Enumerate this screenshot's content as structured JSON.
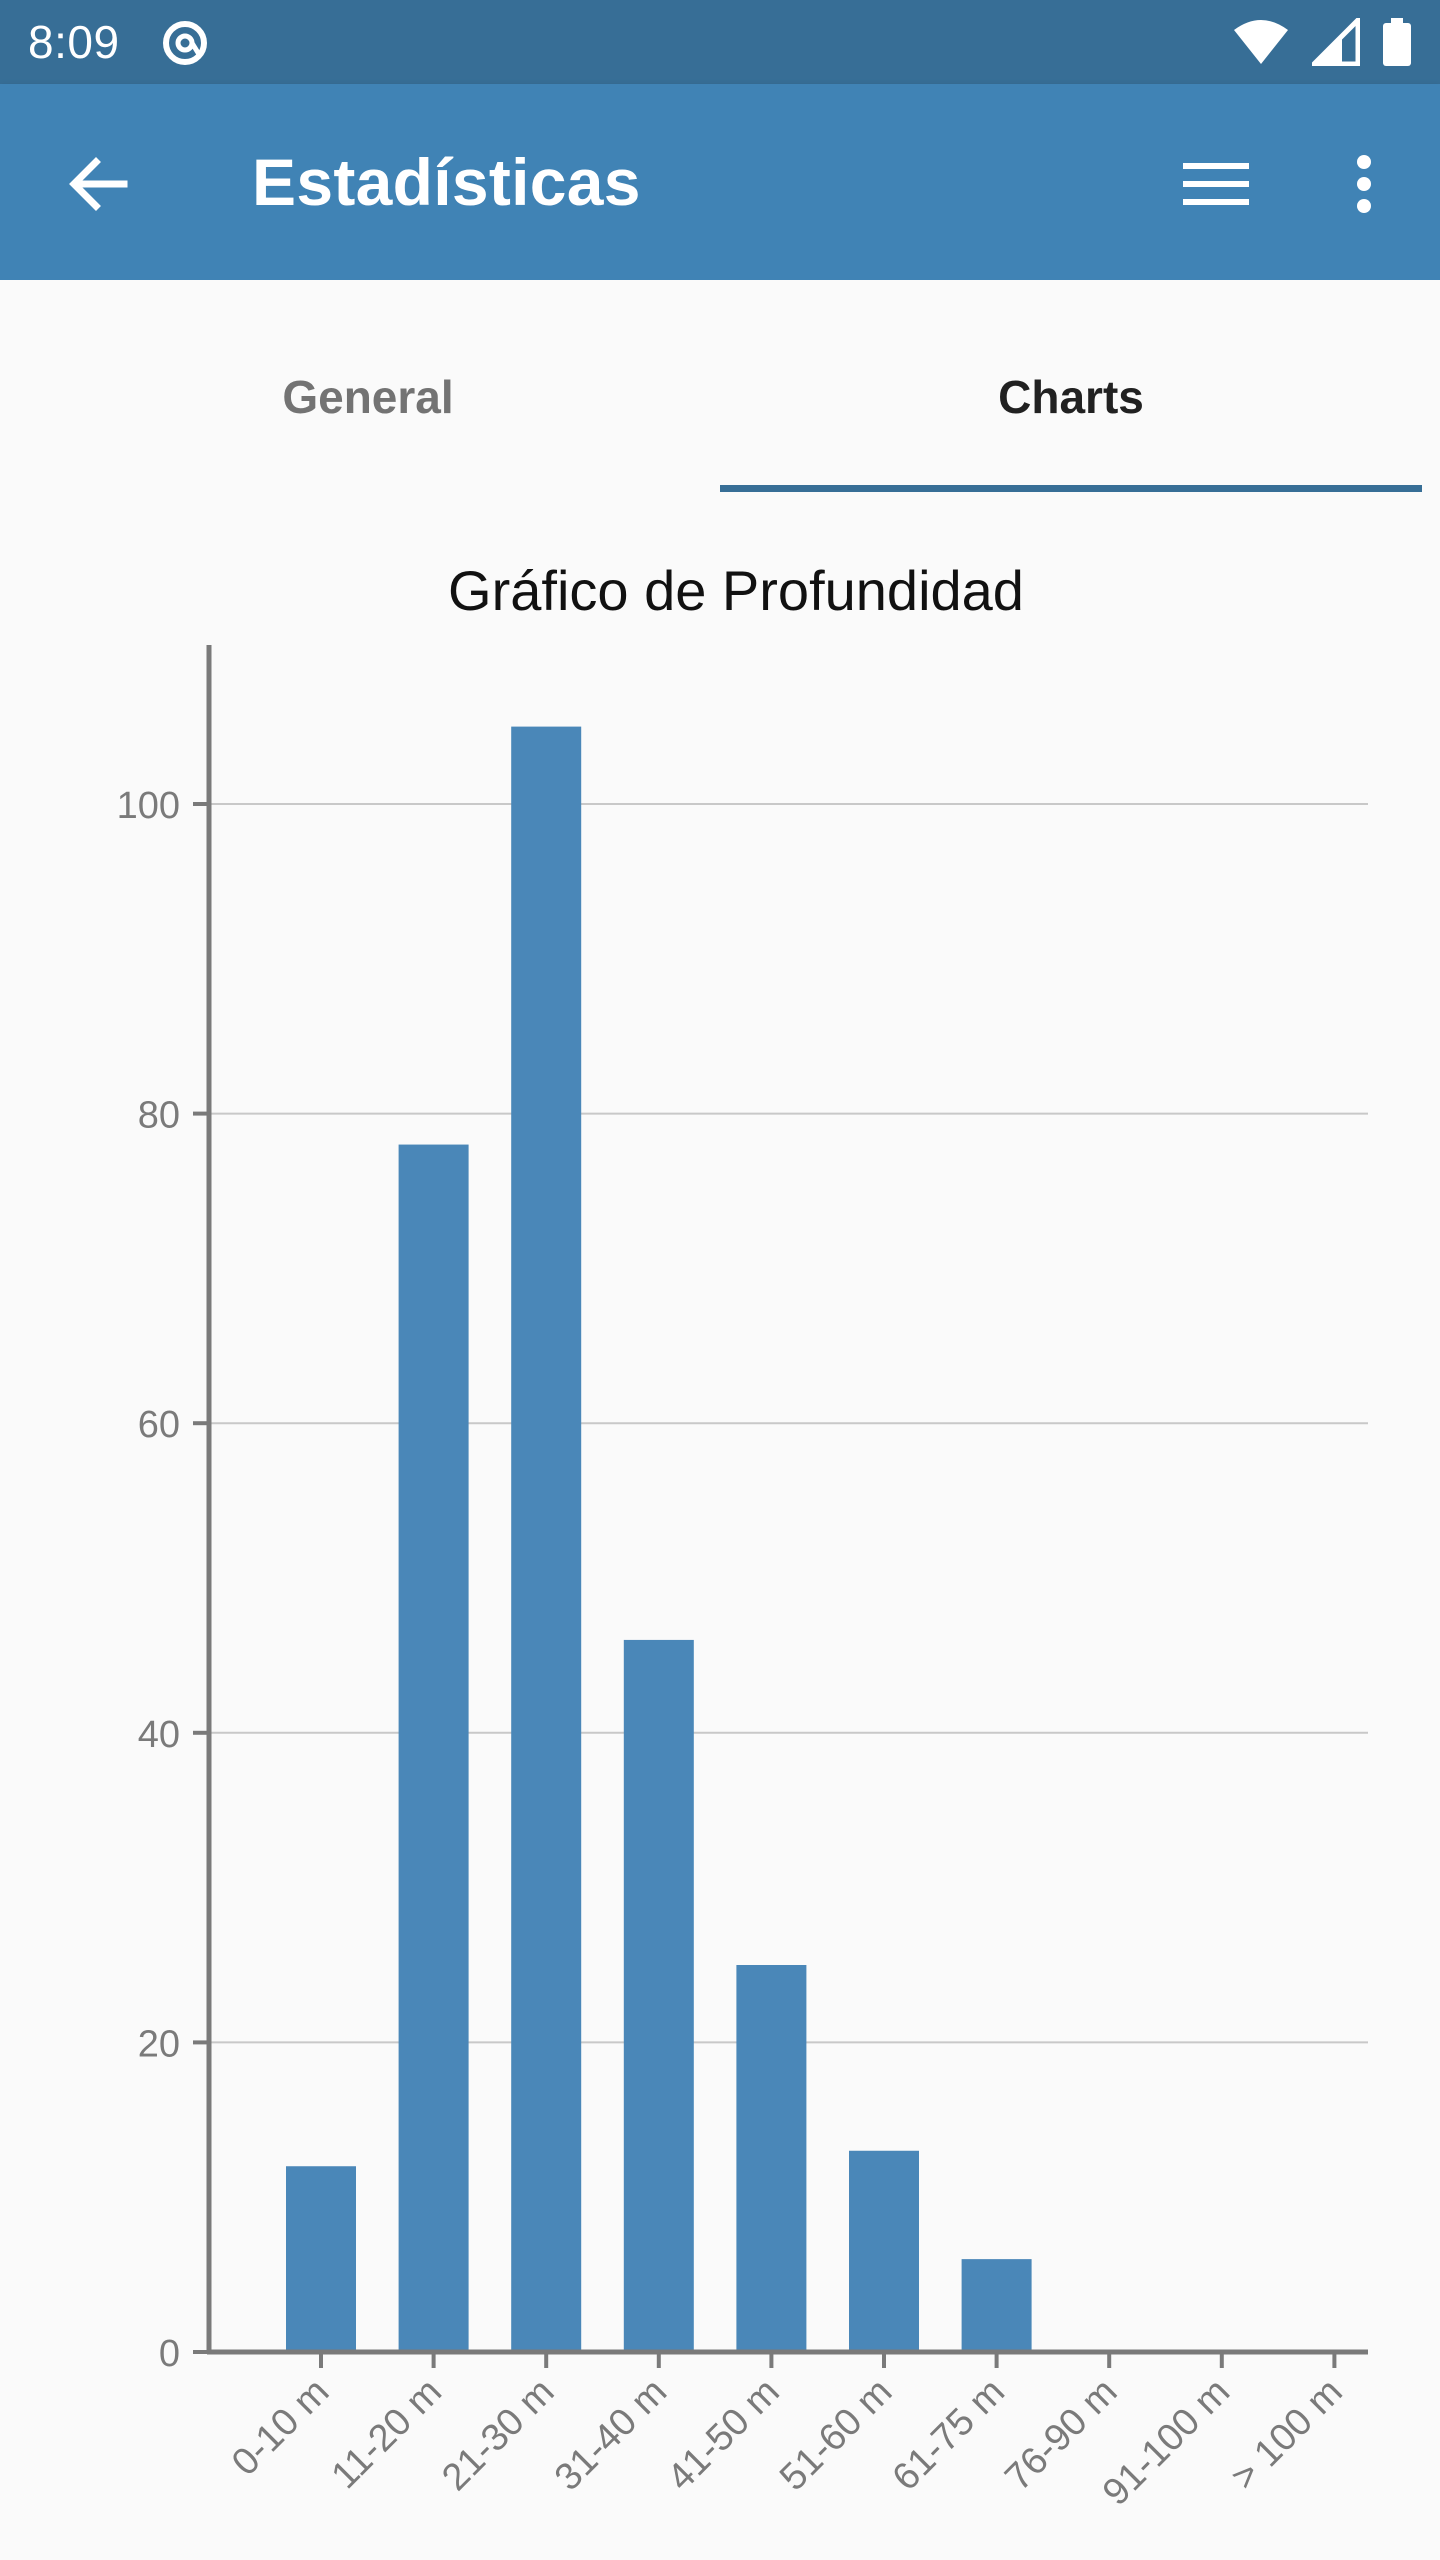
{
  "status_bar": {
    "time": "8:09",
    "icons": [
      "at-sign-icon",
      "wifi-icon",
      "signal-icon",
      "battery-icon"
    ]
  },
  "app_bar": {
    "title": "Estadísticas",
    "back_icon": "arrow-back-icon",
    "menu_icon": "hamburger-menu-icon",
    "more_icon": "more-vert-icon",
    "color": "#4083b5"
  },
  "tabs": [
    {
      "label": "General",
      "selected": false
    },
    {
      "label": "Charts",
      "selected": true
    }
  ],
  "chart_data": {
    "type": "bar",
    "title": "Gráfico de Profundidad",
    "categories": [
      "0-10 m",
      "11-20 m",
      "21-30 m",
      "31-40 m",
      "41-50 m",
      "51-60 m",
      "61-75 m",
      "76-90 m",
      "91-100 m",
      "> 100 m"
    ],
    "values": [
      12,
      78,
      105,
      46,
      25,
      13,
      6,
      0,
      0,
      0
    ],
    "yticks": [
      "0",
      "20",
      "40",
      "60",
      "80",
      "100"
    ],
    "ylim": [
      0,
      110
    ],
    "grid": true,
    "bar_color": "#4a87b8"
  }
}
